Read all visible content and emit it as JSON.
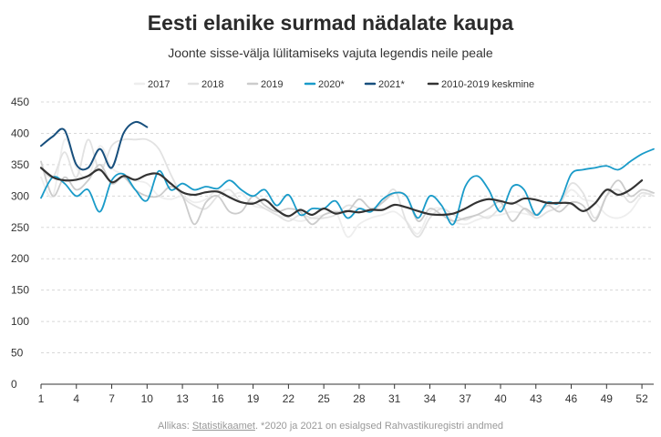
{
  "chart_data": {
    "type": "line",
    "title": "Eesti elanike surmad nädalate kaupa",
    "subtitle": "Joonte sisse-välja lülitamiseks vajuta legendis neile peale",
    "ylim": [
      0,
      450
    ],
    "yticks": [
      0,
      50,
      100,
      150,
      200,
      250,
      300,
      350,
      400,
      450
    ],
    "xlim": [
      1,
      53
    ],
    "xticks": [
      1,
      4,
      7,
      10,
      13,
      16,
      19,
      22,
      25,
      28,
      31,
      34,
      37,
      40,
      43,
      46,
      49,
      52
    ],
    "grid": true,
    "legend_position": "top",
    "series": [
      {
        "name": "2017",
        "color": "#eeeeee",
        "width": 1.8,
        "values": [
          330,
          300,
          390,
          345,
          330,
          380,
          345,
          335,
          325,
          320,
          300,
          295,
          300,
          290,
          295,
          310,
          300,
          305,
          285,
          280,
          270,
          265,
          260,
          265,
          270,
          275,
          235,
          255,
          265,
          270,
          275,
          260,
          240,
          275,
          280,
          260,
          255,
          262,
          268,
          270,
          275,
          272,
          270,
          285,
          290,
          310,
          295,
          290,
          270,
          265,
          275,
          300,
          305
        ]
      },
      {
        "name": "2018",
        "color": "#e2e2e2",
        "width": 1.8,
        "values": [
          345,
          330,
          370,
          330,
          390,
          340,
          380,
          390,
          390,
          390,
          375,
          335,
          300,
          285,
          280,
          300,
          310,
          290,
          290,
          280,
          270,
          260,
          270,
          265,
          265,
          270,
          285,
          280,
          275,
          290,
          310,
          260,
          235,
          265,
          280,
          270,
          262,
          270,
          265,
          282,
          290,
          280,
          265,
          275,
          285,
          320,
          305,
          265,
          300,
          310,
          290,
          305,
          300
        ]
      },
      {
        "name": "2019",
        "color": "#cccccc",
        "width": 1.8,
        "values": [
          355,
          300,
          330,
          310,
          325,
          350,
          320,
          330,
          310,
          300,
          300,
          315,
          300,
          255,
          290,
          300,
          275,
          275,
          300,
          285,
          275,
          280,
          275,
          255,
          270,
          275,
          275,
          295,
          280,
          290,
          305,
          300,
          260,
          280,
          270,
          260,
          265,
          270,
          280,
          290,
          260,
          280,
          270,
          285,
          275,
          290,
          285,
          260,
          300,
          325,
          300,
          310,
          305
        ]
      },
      {
        "name": "2020*",
        "color": "#1a9bc9",
        "width": 1.8,
        "values": [
          297,
          330,
          320,
          300,
          310,
          275,
          325,
          335,
          310,
          293,
          340,
          310,
          320,
          310,
          315,
          312,
          325,
          310,
          300,
          310,
          285,
          302,
          270,
          280,
          280,
          292,
          265,
          280,
          275,
          295,
          305,
          300,
          265,
          300,
          285,
          255,
          315,
          332,
          310,
          275,
          315,
          310,
          270,
          290,
          290,
          335,
          342,
          345,
          348,
          342,
          355,
          367,
          375
        ]
      },
      {
        "name": "2021*",
        "color": "#174f7d",
        "width": 2,
        "values": [
          380,
          395,
          405,
          350,
          345,
          375,
          345,
          400,
          418,
          410
        ]
      },
      {
        "name": "2010-2019 keskmine",
        "color": "#333333",
        "width": 2.2,
        "values": [
          345,
          330,
          325,
          326,
          332,
          342,
          322,
          332,
          326,
          334,
          335,
          320,
          306,
          302,
          306,
          307,
          298,
          290,
          288,
          294,
          278,
          268,
          278,
          270,
          280,
          272,
          276,
          274,
          278,
          278,
          286,
          282,
          276,
          271,
          270,
          272,
          280,
          290,
          295,
          292,
          288,
          296,
          294,
          289,
          289,
          288,
          276,
          288,
          310,
          302,
          310,
          325
        ]
      }
    ]
  },
  "source": {
    "prefix": "Allikas: ",
    "link": "Statistikaamet",
    "suffix": ". *2020 ja 2021 on esialgsed Rahvastikuregistri andmed"
  }
}
